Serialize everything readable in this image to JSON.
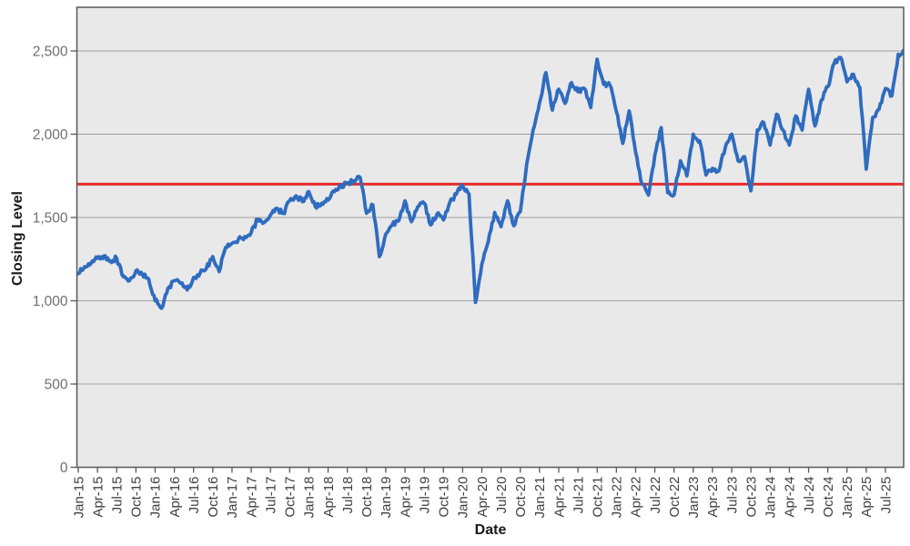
{
  "chart": {
    "y_axis_title": "Closing Level",
    "x_axis_title": "Date"
  },
  "chart_data": {
    "type": "line",
    "title": "",
    "xlabel": "Date",
    "ylabel": "Closing Level",
    "grid": true,
    "legend": "none",
    "ylim": [
      0,
      2760
    ],
    "y_ticks": [
      0,
      500,
      1000,
      1500,
      2000,
      2500
    ],
    "y_tick_labels": [
      "0",
      "500",
      "1,000",
      "1,500",
      "2,000",
      "2,500"
    ],
    "x_tick_labels": [
      "Jan-15",
      "Apr-15",
      "Jul-15",
      "Oct-15",
      "Jan-16",
      "Apr-16",
      "Jul-16",
      "Oct-16",
      "Jan-17",
      "Apr-17",
      "Jul-17",
      "Oct-17",
      "Jan-18",
      "Apr-18",
      "Jul-18",
      "Oct-18",
      "Jan-19",
      "Apr-19",
      "Jul-19",
      "Oct-19",
      "Jan-20",
      "Apr-20",
      "Jul-20",
      "Oct-20",
      "Jan-21",
      "Apr-21",
      "Jul-21",
      "Oct-21",
      "Jan-22",
      "Apr-22",
      "Jul-22",
      "Oct-22",
      "Jan-23",
      "Apr-23",
      "Jul-23",
      "Oct-23",
      "Jan-24",
      "Apr-24",
      "Jul-24",
      "Oct-24",
      "Jan-25",
      "Apr-25",
      "Jul-25"
    ],
    "series": [
      {
        "name": "Closing Level",
        "color": "#2f6cbf",
        "start_month": "Jan-15",
        "frequency": "monthly",
        "values": [
          1160,
          1205,
          1225,
          1255,
          1270,
          1240,
          1255,
          1145,
          1120,
          1180,
          1160,
          1130,
          1000,
          955,
          1075,
          1120,
          1105,
          1065,
          1140,
          1165,
          1195,
          1265,
          1175,
          1320,
          1345,
          1370,
          1385,
          1410,
          1490,
          1470,
          1515,
          1555,
          1525,
          1600,
          1630,
          1595,
          1655,
          1565,
          1585,
          1605,
          1655,
          1690,
          1705,
          1720,
          1740,
          1525,
          1575,
          1265,
          1400,
          1455,
          1480,
          1600,
          1475,
          1565,
          1585,
          1455,
          1520,
          1485,
          1590,
          1640,
          1690,
          1640,
          990,
          1220,
          1355,
          1530,
          1445,
          1600,
          1450,
          1535,
          1820,
          2025,
          2190,
          2370,
          2145,
          2270,
          2185,
          2310,
          2255,
          2275,
          2160,
          2450,
          2300,
          2295,
          2135,
          1945,
          2140,
          1890,
          1700,
          1635,
          1875,
          2040,
          1650,
          1635,
          1840,
          1750,
          2000,
          1960,
          1755,
          1795,
          1780,
          1920,
          2000,
          1840,
          1865,
          1660,
          2025,
          2070,
          1935,
          2120,
          2025,
          1935,
          2110,
          2025,
          2270,
          2050,
          2205,
          2285,
          2425,
          2460,
          2315,
          2360,
          2280,
          1790,
          2100,
          2150,
          2275,
          2230,
          2480,
          2490
        ],
        "intramonth_volatility": 16
      }
    ],
    "threshold_line": {
      "value": 1700,
      "color": "#ea2a2c"
    },
    "colors": {
      "plot_background": "#e9e9e9",
      "page_background": "#ffffff",
      "gridline": "#a0a0a0",
      "frame": "#595959",
      "y_tick_label": "#6f6f6f",
      "x_tick_label": "#404040",
      "axis_title": "#1a1a1a"
    }
  }
}
